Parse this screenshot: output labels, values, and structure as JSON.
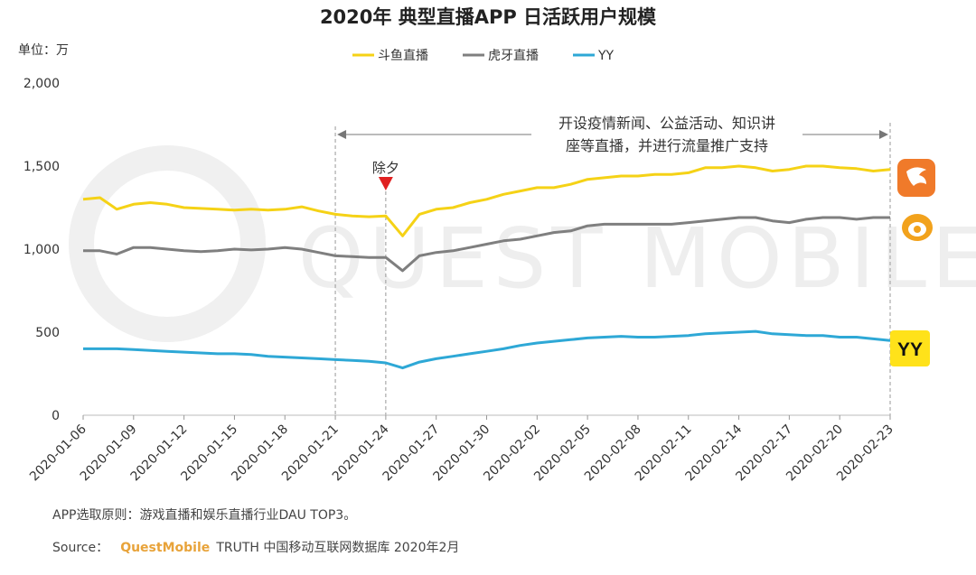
{
  "chart_data": {
    "type": "line",
    "title": "2020年 典型直播APP 日活跃用户规模",
    "unit_label": "单位：万",
    "ylim": [
      0,
      2000
    ],
    "yticks": [
      "0",
      "500",
      "1,000",
      "1,500",
      "2,000"
    ],
    "ytick_values": [
      0,
      500,
      1000,
      1500,
      2000
    ],
    "grid": false,
    "legend_position": "top-center",
    "x_start": "2020-01-06",
    "x_end": "2020-02-23",
    "xticks": [
      "2020-01-06",
      "2020-01-09",
      "2020-01-12",
      "2020-01-15",
      "2020-01-18",
      "2020-01-21",
      "2020-01-24",
      "2020-01-27",
      "2020-01-30",
      "2020-02-02",
      "2020-02-05",
      "2020-02-08",
      "2020-02-11",
      "2020-02-14",
      "2020-02-17",
      "2020-02-20",
      "2020-02-23"
    ],
    "series": [
      {
        "name": "斗鱼直播",
        "color": "#f5d216",
        "points": [
          [
            "2020-01-06",
            1300
          ],
          [
            "2020-01-07",
            1310
          ],
          [
            "2020-01-08",
            1240
          ],
          [
            "2020-01-09",
            1270
          ],
          [
            "2020-01-10",
            1280
          ],
          [
            "2020-01-11",
            1270
          ],
          [
            "2020-01-12",
            1250
          ],
          [
            "2020-01-13",
            1245
          ],
          [
            "2020-01-14",
            1240
          ],
          [
            "2020-01-15",
            1235
          ],
          [
            "2020-01-16",
            1240
          ],
          [
            "2020-01-17",
            1235
          ],
          [
            "2020-01-18",
            1240
          ],
          [
            "2020-01-19",
            1255
          ],
          [
            "2020-01-20",
            1230
          ],
          [
            "2020-01-21",
            1210
          ],
          [
            "2020-01-22",
            1200
          ],
          [
            "2020-01-23",
            1195
          ],
          [
            "2020-01-24",
            1200
          ],
          [
            "2020-01-25",
            1080
          ],
          [
            "2020-01-26",
            1210
          ],
          [
            "2020-01-27",
            1240
          ],
          [
            "2020-01-28",
            1250
          ],
          [
            "2020-01-29",
            1280
          ],
          [
            "2020-01-30",
            1300
          ],
          [
            "2020-01-31",
            1330
          ],
          [
            "2020-02-01",
            1350
          ],
          [
            "2020-02-02",
            1370
          ],
          [
            "2020-02-03",
            1370
          ],
          [
            "2020-02-04",
            1390
          ],
          [
            "2020-02-05",
            1420
          ],
          [
            "2020-02-06",
            1430
          ],
          [
            "2020-02-07",
            1440
          ],
          [
            "2020-02-08",
            1440
          ],
          [
            "2020-02-09",
            1450
          ],
          [
            "2020-02-10",
            1450
          ],
          [
            "2020-02-11",
            1460
          ],
          [
            "2020-02-12",
            1490
          ],
          [
            "2020-02-13",
            1490
          ],
          [
            "2020-02-14",
            1500
          ],
          [
            "2020-02-15",
            1490
          ],
          [
            "2020-02-16",
            1470
          ],
          [
            "2020-02-17",
            1480
          ],
          [
            "2020-02-18",
            1500
          ],
          [
            "2020-02-19",
            1500
          ],
          [
            "2020-02-20",
            1490
          ],
          [
            "2020-02-21",
            1485
          ],
          [
            "2020-02-22",
            1470
          ],
          [
            "2020-02-23",
            1480
          ]
        ]
      },
      {
        "name": "虎牙直播",
        "color": "#7f7f7f",
        "points": [
          [
            "2020-01-06",
            990
          ],
          [
            "2020-01-07",
            990
          ],
          [
            "2020-01-08",
            970
          ],
          [
            "2020-01-09",
            1010
          ],
          [
            "2020-01-10",
            1010
          ],
          [
            "2020-01-11",
            1000
          ],
          [
            "2020-01-12",
            990
          ],
          [
            "2020-01-13",
            985
          ],
          [
            "2020-01-14",
            990
          ],
          [
            "2020-01-15",
            1000
          ],
          [
            "2020-01-16",
            995
          ],
          [
            "2020-01-17",
            1000
          ],
          [
            "2020-01-18",
            1010
          ],
          [
            "2020-01-19",
            1000
          ],
          [
            "2020-01-20",
            980
          ],
          [
            "2020-01-21",
            960
          ],
          [
            "2020-01-22",
            955
          ],
          [
            "2020-01-23",
            950
          ],
          [
            "2020-01-24",
            950
          ],
          [
            "2020-01-25",
            870
          ],
          [
            "2020-01-26",
            960
          ],
          [
            "2020-01-27",
            980
          ],
          [
            "2020-01-28",
            990
          ],
          [
            "2020-01-29",
            1010
          ],
          [
            "2020-01-30",
            1030
          ],
          [
            "2020-01-31",
            1050
          ],
          [
            "2020-02-01",
            1060
          ],
          [
            "2020-02-02",
            1080
          ],
          [
            "2020-02-03",
            1100
          ],
          [
            "2020-02-04",
            1110
          ],
          [
            "2020-02-05",
            1140
          ],
          [
            "2020-02-06",
            1150
          ],
          [
            "2020-02-07",
            1150
          ],
          [
            "2020-02-08",
            1150
          ],
          [
            "2020-02-09",
            1150
          ],
          [
            "2020-02-10",
            1150
          ],
          [
            "2020-02-11",
            1160
          ],
          [
            "2020-02-12",
            1170
          ],
          [
            "2020-02-13",
            1180
          ],
          [
            "2020-02-14",
            1190
          ],
          [
            "2020-02-15",
            1190
          ],
          [
            "2020-02-16",
            1170
          ],
          [
            "2020-02-17",
            1160
          ],
          [
            "2020-02-18",
            1180
          ],
          [
            "2020-02-19",
            1190
          ],
          [
            "2020-02-20",
            1190
          ],
          [
            "2020-02-21",
            1180
          ],
          [
            "2020-02-22",
            1190
          ],
          [
            "2020-02-23",
            1190
          ]
        ]
      },
      {
        "name": "YY",
        "color": "#2ea8d6",
        "points": [
          [
            "2020-01-06",
            400
          ],
          [
            "2020-01-07",
            400
          ],
          [
            "2020-01-08",
            400
          ],
          [
            "2020-01-09",
            395
          ],
          [
            "2020-01-10",
            390
          ],
          [
            "2020-01-11",
            385
          ],
          [
            "2020-01-12",
            380
          ],
          [
            "2020-01-13",
            375
          ],
          [
            "2020-01-14",
            370
          ],
          [
            "2020-01-15",
            370
          ],
          [
            "2020-01-16",
            365
          ],
          [
            "2020-01-17",
            355
          ],
          [
            "2020-01-18",
            350
          ],
          [
            "2020-01-19",
            345
          ],
          [
            "2020-01-20",
            340
          ],
          [
            "2020-01-21",
            335
          ],
          [
            "2020-01-22",
            330
          ],
          [
            "2020-01-23",
            325
          ],
          [
            "2020-01-24",
            315
          ],
          [
            "2020-01-25",
            285
          ],
          [
            "2020-01-26",
            320
          ],
          [
            "2020-01-27",
            340
          ],
          [
            "2020-01-28",
            355
          ],
          [
            "2020-01-29",
            370
          ],
          [
            "2020-01-30",
            385
          ],
          [
            "2020-01-31",
            400
          ],
          [
            "2020-02-01",
            420
          ],
          [
            "2020-02-02",
            435
          ],
          [
            "2020-02-03",
            445
          ],
          [
            "2020-02-04",
            455
          ],
          [
            "2020-02-05",
            465
          ],
          [
            "2020-02-06",
            470
          ],
          [
            "2020-02-07",
            475
          ],
          [
            "2020-02-08",
            470
          ],
          [
            "2020-02-09",
            470
          ],
          [
            "2020-02-10",
            475
          ],
          [
            "2020-02-11",
            480
          ],
          [
            "2020-02-12",
            490
          ],
          [
            "2020-02-13",
            495
          ],
          [
            "2020-02-14",
            500
          ],
          [
            "2020-02-15",
            505
          ],
          [
            "2020-02-16",
            490
          ],
          [
            "2020-02-17",
            485
          ],
          [
            "2020-02-18",
            480
          ],
          [
            "2020-02-19",
            480
          ],
          [
            "2020-02-20",
            470
          ],
          [
            "2020-02-21",
            470
          ],
          [
            "2020-02-22",
            460
          ],
          [
            "2020-02-23",
            450
          ]
        ]
      }
    ],
    "annotations": {
      "eve_label": "除夕",
      "eve_date": "2020-01-24",
      "range_start": "2020-01-21",
      "range_end": "2020-02-23",
      "range_label_line1": "开设疫情新闻、公益活动、知识讲",
      "range_label_line2": "座等直播，并进行流量推广支持"
    },
    "brand_icons": [
      "douyu-logo-icon",
      "huya-logo-icon",
      "yy-logo-icon"
    ],
    "yy_badge_text": "YY",
    "watermark": "QUEST MOBILE"
  },
  "footer": {
    "criteria": "APP选取原则：游戏直播和娱乐直播行业DAU TOP3。",
    "source_label": "Source：",
    "source_brand": "QuestMobile",
    "source_text": "TRUTH 中国移动互联网数据库 2020年2月"
  }
}
